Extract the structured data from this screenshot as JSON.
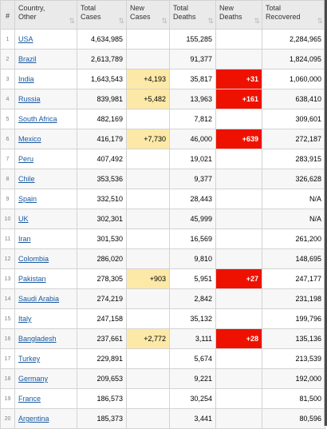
{
  "headers": [
    {
      "lines": [
        "#"
      ],
      "sort": ""
    },
    {
      "lines": [
        "Country,",
        "Other"
      ],
      "sort": "⇅"
    },
    {
      "lines": [
        "Total",
        "Cases"
      ],
      "sort": "⇅"
    },
    {
      "lines": [
        "New",
        "Cases"
      ],
      "sort": "⇅"
    },
    {
      "lines": [
        "Total",
        "Deaths"
      ],
      "sort": "⇅"
    },
    {
      "lines": [
        "New",
        "Deaths"
      ],
      "sort": "⇅"
    },
    {
      "lines": [
        "Total",
        "Recovered"
      ],
      "sort": "⇅"
    }
  ],
  "rows": [
    {
      "idx": "1",
      "country": "USA",
      "total_cases": "4,634,985",
      "new_cases": "",
      "total_deaths": "155,285",
      "new_deaths": "",
      "total_recovered": "2,284,965"
    },
    {
      "idx": "2",
      "country": "Brazil",
      "total_cases": "2,613,789",
      "new_cases": "",
      "total_deaths": "91,377",
      "new_deaths": "",
      "total_recovered": "1,824,095"
    },
    {
      "idx": "3",
      "country": "India",
      "total_cases": "1,643,543",
      "new_cases": "+4,193",
      "total_deaths": "35,817",
      "new_deaths": "+31",
      "total_recovered": "1,060,000"
    },
    {
      "idx": "4",
      "country": "Russia",
      "total_cases": "839,981",
      "new_cases": "+5,482",
      "total_deaths": "13,963",
      "new_deaths": "+161",
      "total_recovered": "638,410"
    },
    {
      "idx": "5",
      "country": "South Africa",
      "total_cases": "482,169",
      "new_cases": "",
      "total_deaths": "7,812",
      "new_deaths": "",
      "total_recovered": "309,601"
    },
    {
      "idx": "6",
      "country": "Mexico",
      "total_cases": "416,179",
      "new_cases": "+7,730",
      "total_deaths": "46,000",
      "new_deaths": "+639",
      "total_recovered": "272,187"
    },
    {
      "idx": "7",
      "country": "Peru",
      "total_cases": "407,492",
      "new_cases": "",
      "total_deaths": "19,021",
      "new_deaths": "",
      "total_recovered": "283,915"
    },
    {
      "idx": "8",
      "country": "Chile",
      "total_cases": "353,536",
      "new_cases": "",
      "total_deaths": "9,377",
      "new_deaths": "",
      "total_recovered": "326,628"
    },
    {
      "idx": "9",
      "country": "Spain",
      "total_cases": "332,510",
      "new_cases": "",
      "total_deaths": "28,443",
      "new_deaths": "",
      "total_recovered": "N/A"
    },
    {
      "idx": "10",
      "country": "UK",
      "total_cases": "302,301",
      "new_cases": "",
      "total_deaths": "45,999",
      "new_deaths": "",
      "total_recovered": "N/A"
    },
    {
      "idx": "11",
      "country": "Iran",
      "total_cases": "301,530",
      "new_cases": "",
      "total_deaths": "16,569",
      "new_deaths": "",
      "total_recovered": "261,200"
    },
    {
      "idx": "12",
      "country": "Colombia",
      "total_cases": "286,020",
      "new_cases": "",
      "total_deaths": "9,810",
      "new_deaths": "",
      "total_recovered": "148,695"
    },
    {
      "idx": "13",
      "country": "Pakistan",
      "total_cases": "278,305",
      "new_cases": "+903",
      "total_deaths": "5,951",
      "new_deaths": "+27",
      "total_recovered": "247,177"
    },
    {
      "idx": "14",
      "country": "Saudi Arabia",
      "total_cases": "274,219",
      "new_cases": "",
      "total_deaths": "2,842",
      "new_deaths": "",
      "total_recovered": "231,198"
    },
    {
      "idx": "15",
      "country": "Italy",
      "total_cases": "247,158",
      "new_cases": "",
      "total_deaths": "35,132",
      "new_deaths": "",
      "total_recovered": "199,796"
    },
    {
      "idx": "16",
      "country": "Bangladesh",
      "total_cases": "237,661",
      "new_cases": "+2,772",
      "total_deaths": "3,111",
      "new_deaths": "+28",
      "total_recovered": "135,136"
    },
    {
      "idx": "17",
      "country": "Turkey",
      "total_cases": "229,891",
      "new_cases": "",
      "total_deaths": "5,674",
      "new_deaths": "",
      "total_recovered": "213,539"
    },
    {
      "idx": "18",
      "country": "Germany",
      "total_cases": "209,653",
      "new_cases": "",
      "total_deaths": "9,221",
      "new_deaths": "",
      "total_recovered": "192,000"
    },
    {
      "idx": "19",
      "country": "France",
      "total_cases": "186,573",
      "new_cases": "",
      "total_deaths": "30,254",
      "new_deaths": "",
      "total_recovered": "81,500"
    },
    {
      "idx": "20",
      "country": "Argentina",
      "total_cases": "185,373",
      "new_cases": "",
      "total_deaths": "3,441",
      "new_deaths": "",
      "total_recovered": "80,596"
    }
  ],
  "colors": {
    "header_bg": "#eaeaea",
    "link": "#1a5aa0",
    "new_cases_highlight": "#fde9a7",
    "new_deaths_highlight": "#ee1100"
  }
}
